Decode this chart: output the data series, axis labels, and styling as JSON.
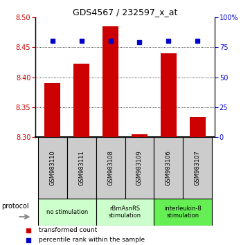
{
  "title": "GDS4567 / 232597_x_at",
  "samples": [
    "GSM983110",
    "GSM983111",
    "GSM983108",
    "GSM983109",
    "GSM983106",
    "GSM983107"
  ],
  "bar_values": [
    8.39,
    8.422,
    8.485,
    8.305,
    8.44,
    8.334
  ],
  "bar_base": 8.3,
  "percentile_values": [
    80,
    80,
    80,
    79,
    80,
    80
  ],
  "bar_color": "#cc0000",
  "dot_color": "#0000cc",
  "ylim_left": [
    8.3,
    8.5
  ],
  "ylim_right": [
    0,
    100
  ],
  "yticks_left": [
    8.3,
    8.35,
    8.4,
    8.45,
    8.5
  ],
  "yticks_right": [
    0,
    25,
    50,
    75,
    100
  ],
  "ytick_labels_right": [
    "0",
    "25",
    "50",
    "75",
    "100%"
  ],
  "group_configs": [
    {
      "start": 0,
      "end": 1,
      "label": "no stimulation",
      "color": "#ccffcc"
    },
    {
      "start": 2,
      "end": 3,
      "label": "rBmAsnRS\nstimulation",
      "color": "#ccffcc"
    },
    {
      "start": 4,
      "end": 5,
      "label": "interleukin-8\nstimulation",
      "color": "#66ee55"
    }
  ],
  "protocol_label": "protocol",
  "legend_bar_label": "transformed count",
  "legend_dot_label": "percentile rank within the sample",
  "sample_box_color": "#cccccc",
  "title_fontsize": 9
}
